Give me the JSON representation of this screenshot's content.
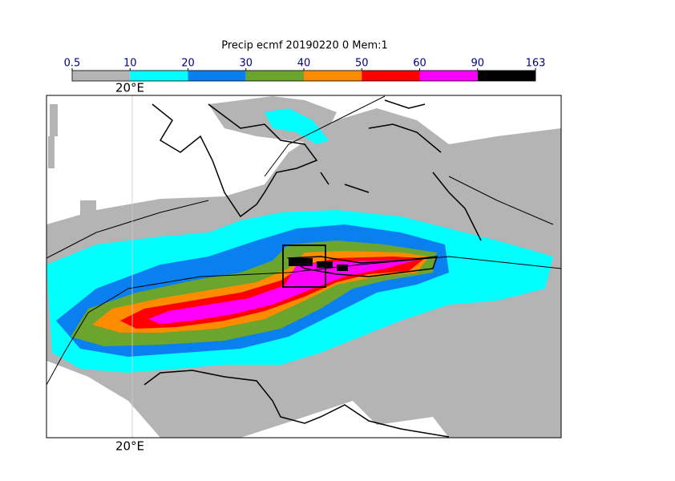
{
  "title": "Precip ecmf 20190220 0 Mem:1",
  "colorbar": {
    "ticks": [
      0.5,
      10,
      20,
      30,
      40,
      50,
      60,
      90,
      163
    ],
    "colors": [
      "#b4b4b4",
      "#00ffff",
      "#0a80f0",
      "#6ba52d",
      "#ff8c00",
      "#ff0000",
      "#ff00ff",
      "#000000"
    ]
  },
  "map": {
    "top_label": "20°E",
    "bottom_label": "20°E"
  }
}
